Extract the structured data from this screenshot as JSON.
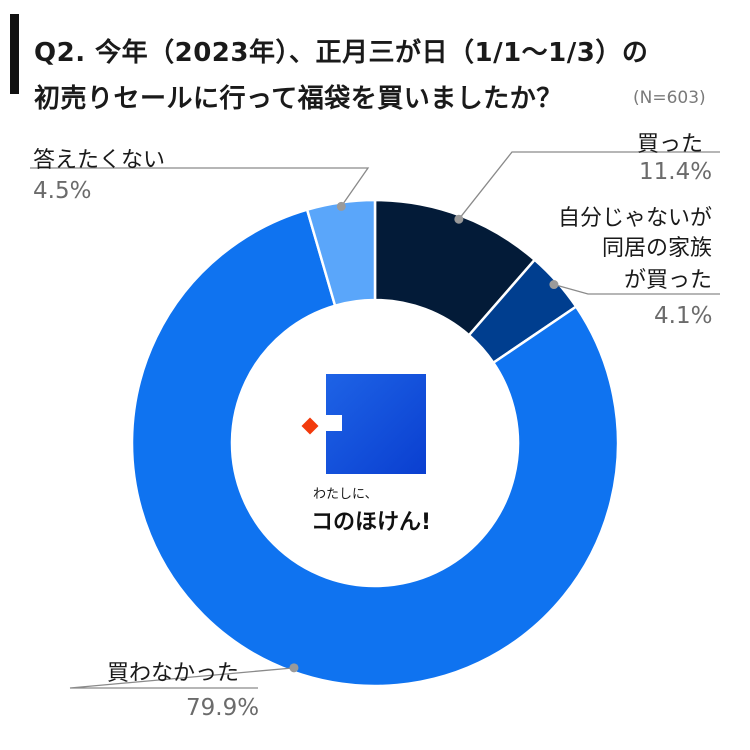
{
  "title": {
    "line1": "Q2. 今年（2023年）、正月三が日（1/1〜1/3）の",
    "line2": "初売りセールに行って福袋を買いましたか？",
    "n_label": "(N=603)"
  },
  "logo": {
    "subtitle": "わたしに、",
    "name": "コのほけん!"
  },
  "chart_data": {
    "type": "pie",
    "donut": true,
    "start_angle_deg": 0,
    "direction": "clockwise",
    "unit": "%",
    "series": [
      {
        "label": "買った",
        "value": 11.4,
        "display": "11.4%",
        "color": "#031b38"
      },
      {
        "label": "自分じゃないが同居の家族が買った",
        "label_lines": [
          "自分じゃないが",
          "同居の家族",
          "が買った"
        ],
        "value": 4.1,
        "display": "4.1%",
        "color": "#003e8f"
      },
      {
        "label": "買わなかった",
        "value": 79.9,
        "display": "79.9%",
        "color": "#0f73f0"
      },
      {
        "label": "答えたくない",
        "value": 4.5,
        "display": "4.5%",
        "color": "#5aa6fa"
      }
    ]
  }
}
